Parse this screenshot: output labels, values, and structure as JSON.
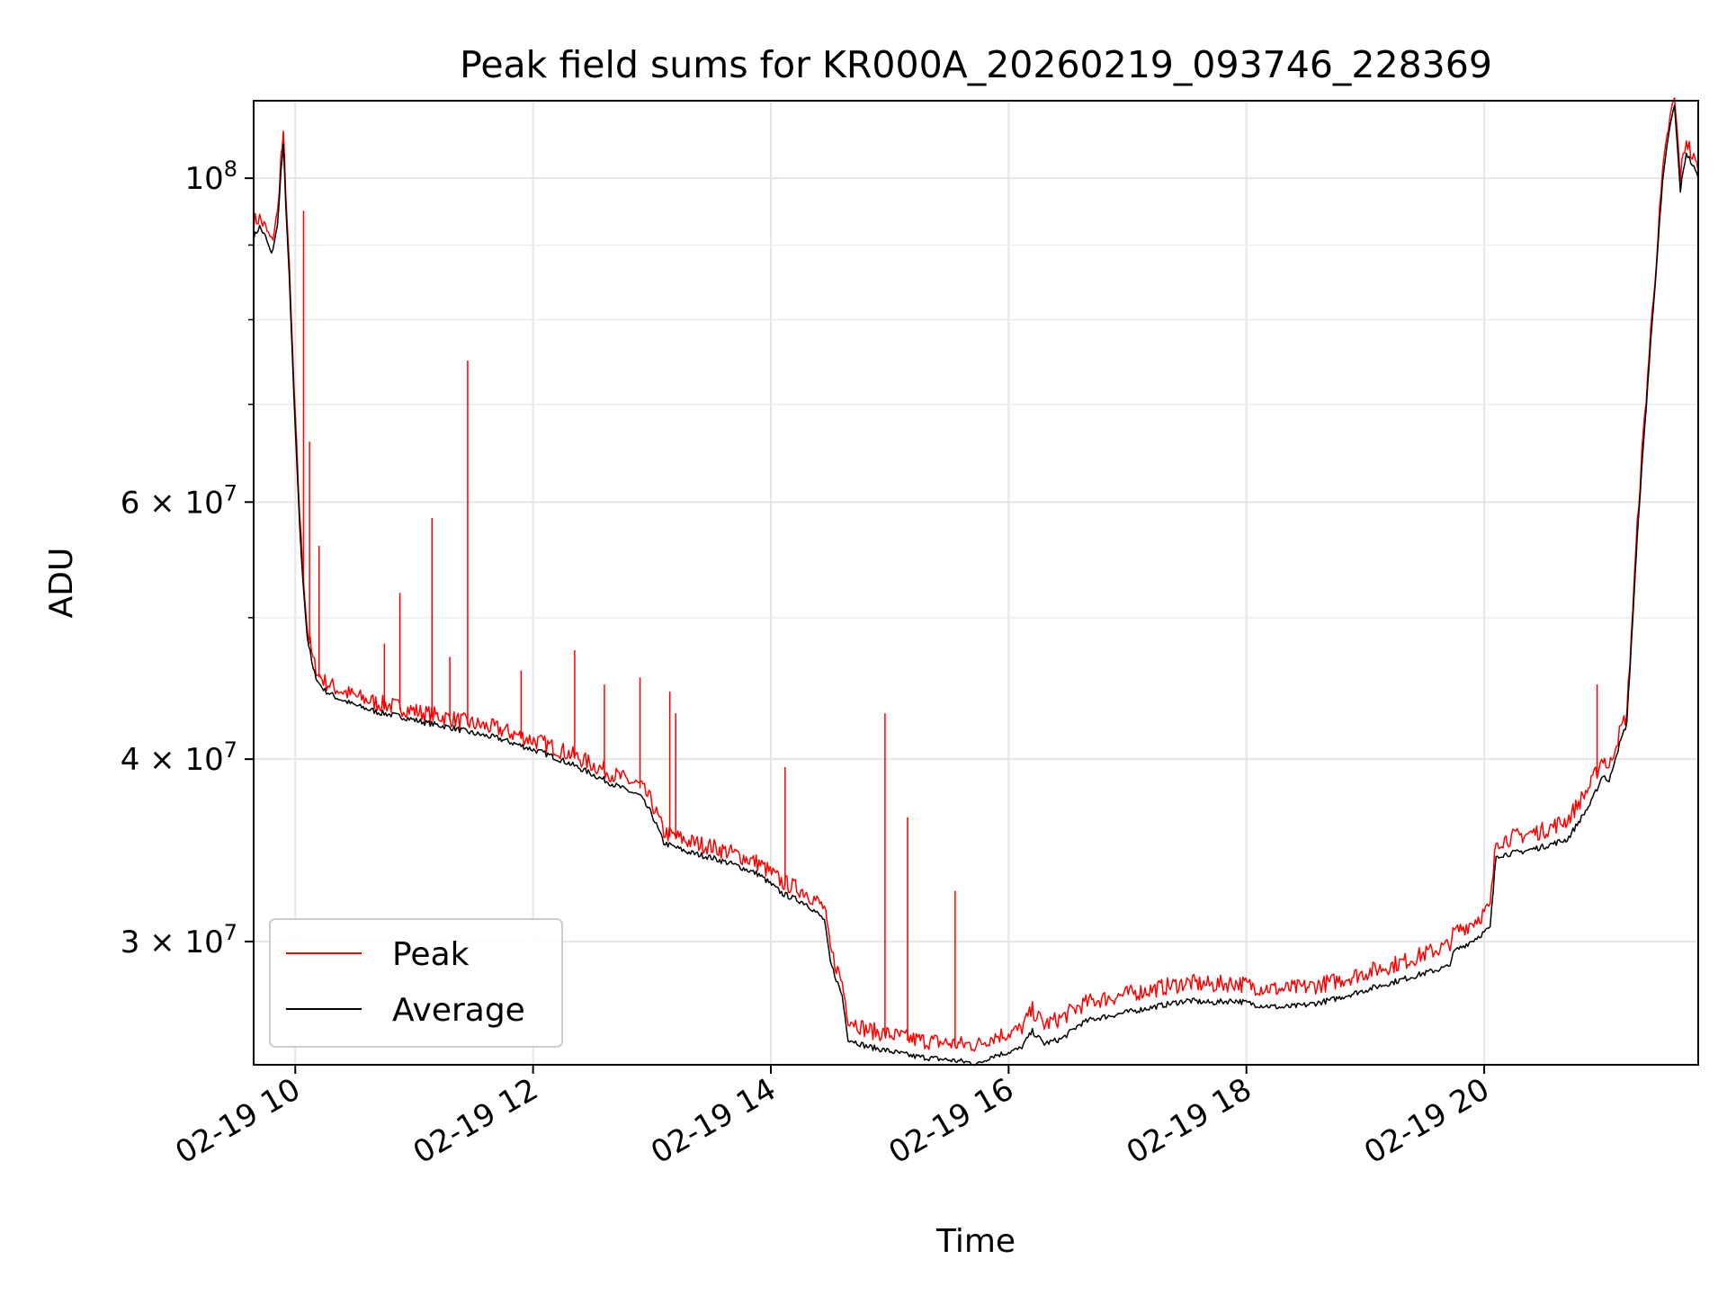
{
  "chart_data": {
    "type": "line",
    "title": "Peak field sums for KR000A_20260219_093746_228369",
    "xlabel": "Time",
    "ylabel": "ADU",
    "yscale": "log",
    "grid": true,
    "legend_position": "lower-left",
    "x_tick_labels": [
      "02-19 10",
      "02-19 12",
      "02-19 14",
      "02-19 16",
      "02-19 18",
      "02-19 20"
    ],
    "x_tick_hours": [
      10,
      12,
      14,
      16,
      18,
      20
    ],
    "xlim_hours": [
      9.65,
      21.8
    ],
    "y_tick_values": [
      100000000,
      60000000,
      40000000,
      30000000
    ],
    "y_tick_labels": [
      {
        "mantissa": "",
        "exponent": "8"
      },
      {
        "mantissa": "6 × ",
        "exponent": "7"
      },
      {
        "mantissa": "4 × ",
        "exponent": "7"
      },
      {
        "mantissa": "3 × ",
        "exponent": "7"
      }
    ],
    "y_minor_ticks": [
      20000000,
      50000000,
      70000000,
      80000000,
      90000000
    ],
    "ylim": [
      24700000,
      113000000
    ],
    "series": [
      {
        "name": "Peak",
        "color": "#ff0000",
        "x_hours": [
          9.65,
          9.7,
          9.75,
          9.8,
          9.85,
          9.88,
          9.9,
          9.92,
          9.95,
          10.0,
          10.05,
          10.1,
          10.15,
          10.2,
          10.25,
          10.35,
          10.5,
          10.7,
          10.9,
          11.1,
          11.3,
          11.5,
          11.7,
          11.9,
          12.1,
          12.3,
          12.5,
          12.7,
          12.9,
          13.0,
          13.1,
          13.3,
          13.5,
          13.7,
          13.9,
          14.1,
          14.3,
          14.45,
          14.5,
          14.6,
          14.65,
          14.8,
          15.0,
          15.2,
          15.4,
          15.6,
          15.75,
          15.85,
          15.95,
          16.1,
          16.2,
          16.3,
          16.45,
          16.6,
          16.7,
          16.9,
          17.1,
          17.3,
          17.5,
          17.7,
          17.9,
          18.1,
          18.3,
          18.5,
          18.7,
          18.9,
          19.1,
          19.3,
          19.5,
          19.7,
          19.75,
          19.9,
          20.05,
          20.1,
          20.3,
          20.5,
          20.7,
          20.9,
          21.0,
          21.05,
          21.1,
          21.2,
          21.3,
          21.4,
          21.5,
          21.55,
          21.6,
          21.65,
          21.7,
          21.75,
          21.8
        ],
        "values": [
          93000000,
          93500000,
          92000000,
          90000000,
          94000000,
          103000000,
          106000000,
          98000000,
          86000000,
          68000000,
          56000000,
          49000000,
          46500000,
          45500000,
          45000000,
          44500000,
          44000000,
          43500000,
          43200000,
          42800000,
          42500000,
          42100000,
          41800000,
          41300000,
          40800000,
          40200000,
          39500000,
          38800000,
          38200000,
          37200000,
          35500000,
          35000000,
          34700000,
          34300000,
          33800000,
          32800000,
          32300000,
          31500000,
          29500000,
          28000000,
          26500000,
          26000000,
          25800000,
          25600000,
          25500000,
          25400000,
          25400000,
          25700000,
          25800000,
          26000000,
          26800000,
          26200000,
          26500000,
          27000000,
          27200000,
          27400000,
          27600000,
          27800000,
          28000000,
          27900000,
          28000000,
          27800000,
          27700000,
          27800000,
          28000000,
          28300000,
          28600000,
          28900000,
          29300000,
          29700000,
          30300000,
          30800000,
          31500000,
          35000000,
          35300000,
          35600000,
          36200000,
          38300000,
          40000000,
          39200000,
          40700000,
          42800000,
          60000000,
          78000000,
          100000000,
          108000000,
          113000000,
          100000000,
          106000000,
          103000000,
          101000000
        ],
        "spikes": [
          {
            "x_hour": 10.07,
            "value": 95000000
          },
          {
            "x_hour": 10.12,
            "value": 66000000
          },
          {
            "x_hour": 10.2,
            "value": 56000000
          },
          {
            "x_hour": 10.75,
            "value": 48000000
          },
          {
            "x_hour": 10.88,
            "value": 52000000
          },
          {
            "x_hour": 11.15,
            "value": 58500000
          },
          {
            "x_hour": 11.3,
            "value": 47000000
          },
          {
            "x_hour": 11.45,
            "value": 75000000
          },
          {
            "x_hour": 11.9,
            "value": 46000000
          },
          {
            "x_hour": 12.35,
            "value": 47500000
          },
          {
            "x_hour": 12.6,
            "value": 45000000
          },
          {
            "x_hour": 12.9,
            "value": 45500000
          },
          {
            "x_hour": 13.15,
            "value": 44500000
          },
          {
            "x_hour": 13.2,
            "value": 43000000
          },
          {
            "x_hour": 14.12,
            "value": 39500000
          },
          {
            "x_hour": 14.96,
            "value": 43000000
          },
          {
            "x_hour": 15.15,
            "value": 36500000
          },
          {
            "x_hour": 15.55,
            "value": 32500000
          },
          {
            "x_hour": 20.95,
            "value": 45000000
          }
        ]
      },
      {
        "name": "Average",
        "color": "#000000",
        "x_hours": [
          9.65,
          9.7,
          9.75,
          9.8,
          9.85,
          9.88,
          9.9,
          9.92,
          9.95,
          10.0,
          10.05,
          10.1,
          10.15,
          10.2,
          10.25,
          10.35,
          10.5,
          10.7,
          10.9,
          11.1,
          11.3,
          11.5,
          11.7,
          11.9,
          12.1,
          12.3,
          12.5,
          12.7,
          12.9,
          13.0,
          13.1,
          13.3,
          13.5,
          13.7,
          13.9,
          14.1,
          14.3,
          14.45,
          14.5,
          14.6,
          14.65,
          14.8,
          15.0,
          15.2,
          15.4,
          15.6,
          15.75,
          15.85,
          15.95,
          16.1,
          16.2,
          16.3,
          16.45,
          16.6,
          16.7,
          16.9,
          17.1,
          17.3,
          17.5,
          17.7,
          17.9,
          18.1,
          18.3,
          18.5,
          18.7,
          18.9,
          19.1,
          19.3,
          19.5,
          19.7,
          19.75,
          19.9,
          20.05,
          20.1,
          20.3,
          20.5,
          20.7,
          20.9,
          21.0,
          21.05,
          21.1,
          21.2,
          21.3,
          21.4,
          21.5,
          21.55,
          21.6,
          21.65,
          21.7,
          21.75,
          21.8
        ],
        "values": [
          91000000,
          92500000,
          91000000,
          88500000,
          92500000,
          101000000,
          105000000,
          96000000,
          85000000,
          67000000,
          55000000,
          48500000,
          46000000,
          45000000,
          44500000,
          44000000,
          43500000,
          43000000,
          42700000,
          42300000,
          42000000,
          41600000,
          41300000,
          40800000,
          40300000,
          39700000,
          39000000,
          38300000,
          37700000,
          36600000,
          35000000,
          34500000,
          34200000,
          33800000,
          33300000,
          32300000,
          31800000,
          31000000,
          29000000,
          27500000,
          25700000,
          25400000,
          25200000,
          25000000,
          24900000,
          24800000,
          24700000,
          25000000,
          25100000,
          25300000,
          26000000,
          25500000,
          25700000,
          26300000,
          26500000,
          26700000,
          26900000,
          27100000,
          27300000,
          27200000,
          27300000,
          27100000,
          27000000,
          27100000,
          27300000,
          27600000,
          27900000,
          28200000,
          28500000,
          28800000,
          29500000,
          30000000,
          30600000,
          34300000,
          34500000,
          34800000,
          35200000,
          37300000,
          39000000,
          38500000,
          40000000,
          42300000,
          59000000,
          77000000,
          99000000,
          107000000,
          112000000,
          98000000,
          104000000,
          102000000,
          100000000
        ]
      }
    ]
  }
}
